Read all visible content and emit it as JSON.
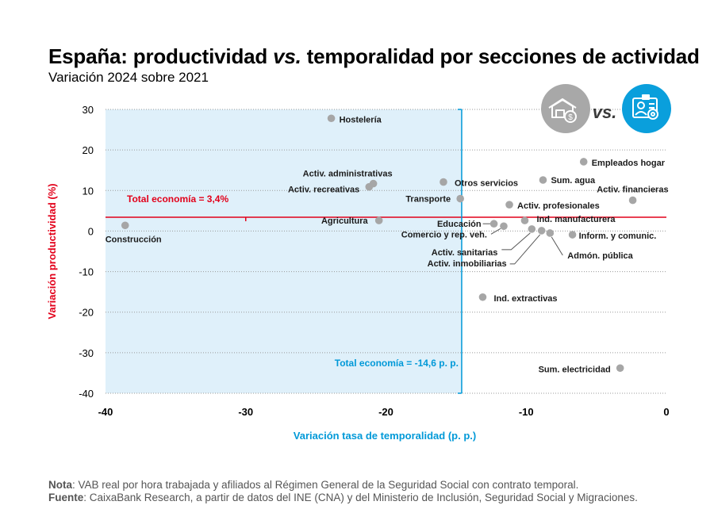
{
  "header": {
    "title_pre": "España: productividad ",
    "title_em": "vs.",
    "title_post": " temporalidad por secciones de actividad",
    "subtitle": "Variación 2024 sobre 2021"
  },
  "badge": {
    "vs_text": "vs."
  },
  "colors": {
    "point": "#a6a6a6",
    "red": "#e2001a",
    "blue": "#0099d8",
    "shade": "#dff0fa",
    "grid": "#9a9a9a"
  },
  "chart_data": {
    "type": "scatter",
    "title": "España: productividad vs. temporalidad por secciones de actividad",
    "xlabel": "Variación tasa de temporalidad (p. p.)",
    "ylabel": "Variación productividad (%)",
    "xlim": [
      -40,
      0
    ],
    "ylim": [
      -40,
      30
    ],
    "xticks": [
      "-40",
      "-30",
      "-20",
      "-10",
      "0"
    ],
    "yticks": [
      "30",
      "20",
      "10",
      "0",
      "-10",
      "-20",
      "-30",
      "-40"
    ],
    "reference_lines": {
      "horizontal": {
        "value": 3.4,
        "label": "Total economía = 3,4%"
      },
      "vertical": {
        "value": -14.6,
        "label": "Total economía = -14,6 p. p."
      }
    },
    "points": [
      {
        "label": "Hostelería",
        "x": -23.9,
        "y": 27.8
      },
      {
        "label": "Empleados hogar",
        "x": -5.9,
        "y": 17.1
      },
      {
        "label": "Sum. agua",
        "x": -8.8,
        "y": 12.6
      },
      {
        "label": "Otros servicios",
        "x": -15.9,
        "y": 12.1
      },
      {
        "label": "Activ. administrativas",
        "x": -20.9,
        "y": 11.7
      },
      {
        "label": "Activ. recreativas",
        "x": -21.2,
        "y": 10.9
      },
      {
        "label": "Transporte",
        "x": -14.7,
        "y": 8.0
      },
      {
        "label": "Activ. financieras",
        "x": -2.4,
        "y": 7.6
      },
      {
        "label": "Activ. profesionales",
        "x": -11.2,
        "y": 6.5
      },
      {
        "label": "Ind. manufacturera",
        "x": -10.1,
        "y": 2.6
      },
      {
        "label": "Agricultura",
        "x": -20.5,
        "y": 2.6
      },
      {
        "label": "Educación",
        "x": -12.3,
        "y": 1.8
      },
      {
        "label": "Construcción",
        "x": -38.6,
        "y": 1.4
      },
      {
        "label": "Comercio y rep. veh.",
        "x": -11.6,
        "y": 1.2
      },
      {
        "label": "Activ. sanitarias",
        "x": -9.6,
        "y": 0.5
      },
      {
        "label": "Activ. inmobiliarias",
        "x": -8.9,
        "y": 0.1
      },
      {
        "label": "Admón. pública",
        "x": -8.3,
        "y": -0.5
      },
      {
        "label": "Inform. y comunic.",
        "x": -6.7,
        "y": -0.9
      },
      {
        "label": "Ind. extractivas",
        "x": -13.1,
        "y": -16.3
      },
      {
        "label": "Sum. electricidad",
        "x": -3.3,
        "y": -33.8
      }
    ]
  },
  "notes": {
    "nota_label": "Nota",
    "nota_text": ": VAB real por hora trabajada y afiliados al Régimen General de la Seguridad Social con contrato temporal.",
    "fuente_label": "Fuente",
    "fuente_text": ": CaixaBank Research, a partir de datos del INE (CNA) y del Ministerio de Inclusión, Seguridad Social y Migraciones."
  }
}
